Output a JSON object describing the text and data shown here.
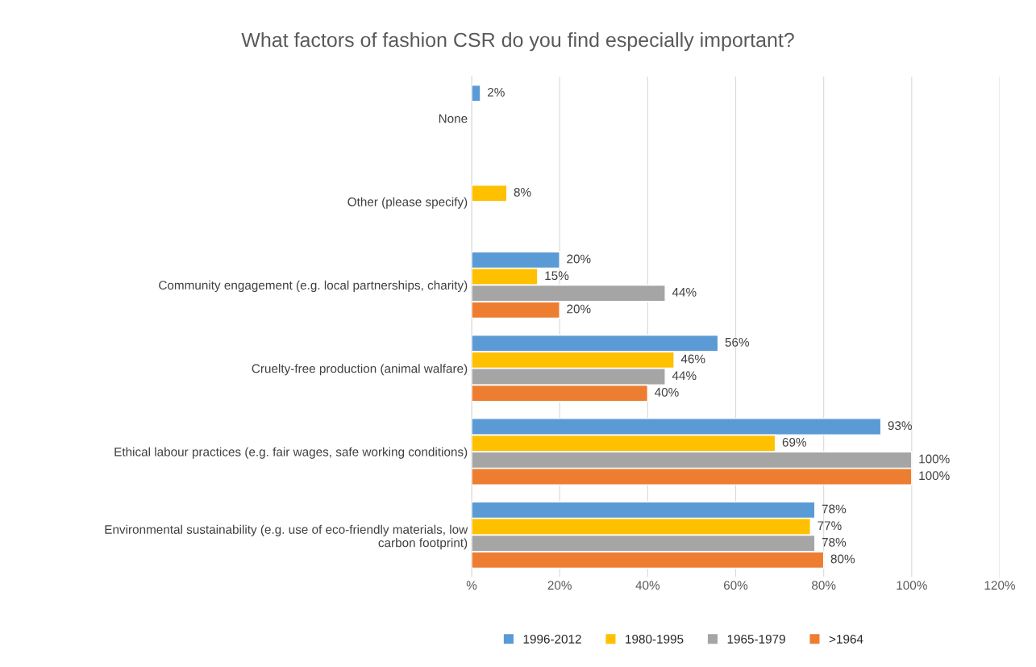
{
  "chart_data": {
    "type": "bar",
    "orientation": "horizontal",
    "title": "What factors of fashion CSR do you find especially important?",
    "categories": [
      "None",
      "Other (please specify)",
      "Community engagement (e.g. local partnerships, charity)",
      "Cruelty-free production (animal walfare)",
      "Ethical labour practices (e.g. fair wages, safe working conditions)",
      "Environmental sustainability (e.g. use of eco-friendly materials, low\ncarbon footprint)"
    ],
    "series": [
      {
        "name": "1996-2012",
        "color": "#5b9bd5",
        "values": [
          2,
          null,
          20,
          56,
          93,
          78
        ],
        "value_labels": [
          "2%",
          null,
          "20%",
          "56%",
          "93%",
          "78%"
        ]
      },
      {
        "name": "1980-1995",
        "color": "#ffc000",
        "values": [
          null,
          8,
          15,
          46,
          69,
          77
        ],
        "value_labels": [
          null,
          "8%",
          "15%",
          "46%",
          "69%",
          "77%"
        ]
      },
      {
        "name": "1965-1979",
        "color": "#a5a5a5",
        "values": [
          null,
          null,
          44,
          44,
          100,
          78
        ],
        "value_labels": [
          null,
          null,
          "44%",
          "44%",
          "100%",
          "78%"
        ]
      },
      {
        "name": ">1964",
        "color": "#ed7d31",
        "values": [
          null,
          null,
          20,
          40,
          100,
          80
        ],
        "value_labels": [
          null,
          null,
          "20%",
          "40%",
          "100%",
          "80%"
        ]
      }
    ],
    "xlim": [
      0,
      120
    ],
    "xticks": [
      {
        "value": 0,
        "label": "%"
      },
      {
        "value": 20,
        "label": "20%"
      },
      {
        "value": 40,
        "label": "40%"
      },
      {
        "value": 60,
        "label": "60%"
      },
      {
        "value": 80,
        "label": "80%"
      },
      {
        "value": 100,
        "label": "100%"
      },
      {
        "value": 120,
        "label": "120%"
      }
    ],
    "grid": "x",
    "legend": "bottom"
  }
}
